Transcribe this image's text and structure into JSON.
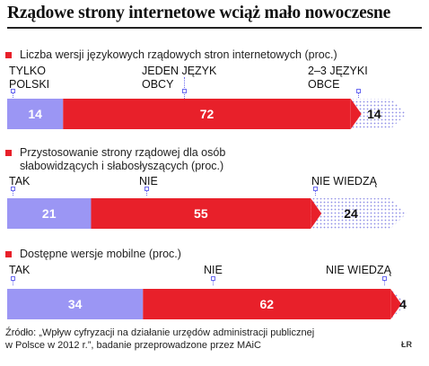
{
  "title": "Rządowe strony internetowe wciąż mało nowoczesne",
  "colors": {
    "purple": "#9b96f4",
    "red": "#e8202a",
    "dots": "#9a9aea",
    "marker": "#e8202a"
  },
  "chart_data": [
    {
      "type": "bar",
      "subtype": "stacked-horizontal-100",
      "title": "Liczba wersji językowych rządowych stron internetowych (proc.)",
      "categories": [
        "TYLKO POLSKI",
        "JEDEN JĘZYK OBCY",
        "2–3 JĘZYKI OBCE"
      ],
      "label_lines": [
        [
          "TYLKO",
          "POLSKI"
        ],
        [
          "JEDEN JĘZYK",
          "OBCY"
        ],
        [
          "2–3 JĘZYKI",
          "OBCE"
        ]
      ],
      "values": [
        14,
        72,
        14
      ],
      "value_labels": [
        "14",
        "72",
        "14"
      ]
    },
    {
      "type": "bar",
      "subtype": "stacked-horizontal-100",
      "title": "Przystosowanie strony rządowej dla osób słabowidzących i słabosłyszących (proc.)",
      "title_lines": [
        "Przystosowanie strony rządowej dla osób",
        "słabowidzących i słabosłyszących (proc.)"
      ],
      "categories": [
        "TAK",
        "NIE",
        "NIE WIEDZĄ"
      ],
      "label_lines": [
        [
          "TAK"
        ],
        [
          "NIE"
        ],
        [
          "NIE WIEDZĄ"
        ]
      ],
      "values": [
        21,
        55,
        24
      ],
      "value_labels": [
        "21",
        "55",
        "24"
      ]
    },
    {
      "type": "bar",
      "subtype": "stacked-horizontal-100",
      "title": "Dostępne wersje mobilne (proc.)",
      "categories": [
        "TAK",
        "NIE",
        "NIE WIEDZĄ"
      ],
      "label_lines": [
        [
          "TAK"
        ],
        [
          "NIE"
        ],
        [
          "NIE WIEDZĄ"
        ]
      ],
      "values": [
        34,
        62,
        4
      ],
      "value_labels": [
        "34",
        "62",
        "4"
      ]
    }
  ],
  "source_lines": [
    "Źródło: „Wpływ cyfryzacji na działanie urzędów  administracji publicznej",
    "w Polsce w 2012 r.”, badanie przeprowadzone przez MAiC"
  ],
  "credit": "ŁR"
}
